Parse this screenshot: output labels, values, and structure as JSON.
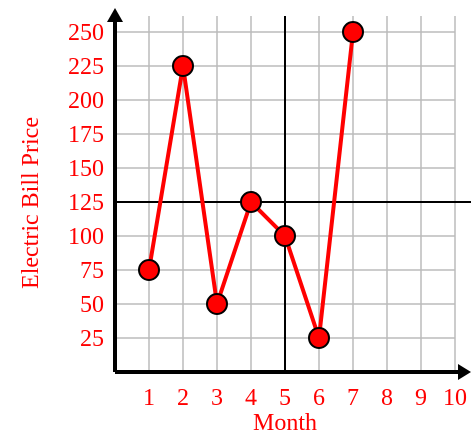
{
  "chart_data": {
    "type": "line",
    "title": "",
    "xlabel": "Month",
    "ylabel": "Electric Bill Price",
    "x": [
      1,
      2,
      3,
      4,
      5,
      6,
      7
    ],
    "series": [
      {
        "values": [
          75,
          225,
          50,
          125,
          100,
          25,
          250
        ]
      }
    ],
    "xlim": [
      0,
      10
    ],
    "ylim": [
      0,
      250
    ],
    "x_ticks": [
      "1",
      "2",
      "3",
      "4",
      "5",
      "6",
      "7",
      "8",
      "9",
      "10"
    ],
    "y_ticks": [
      "25",
      "50",
      "75",
      "100",
      "125",
      "150",
      "175",
      "200",
      "225",
      "250"
    ],
    "reference_lines": {
      "x": 5,
      "y": 125
    },
    "grid": true,
    "colors": {
      "series": "#ff0000",
      "marker_stroke": "#000000",
      "text": "#ff0000",
      "grid": "#bbbbbb",
      "axis": "#000000"
    }
  }
}
